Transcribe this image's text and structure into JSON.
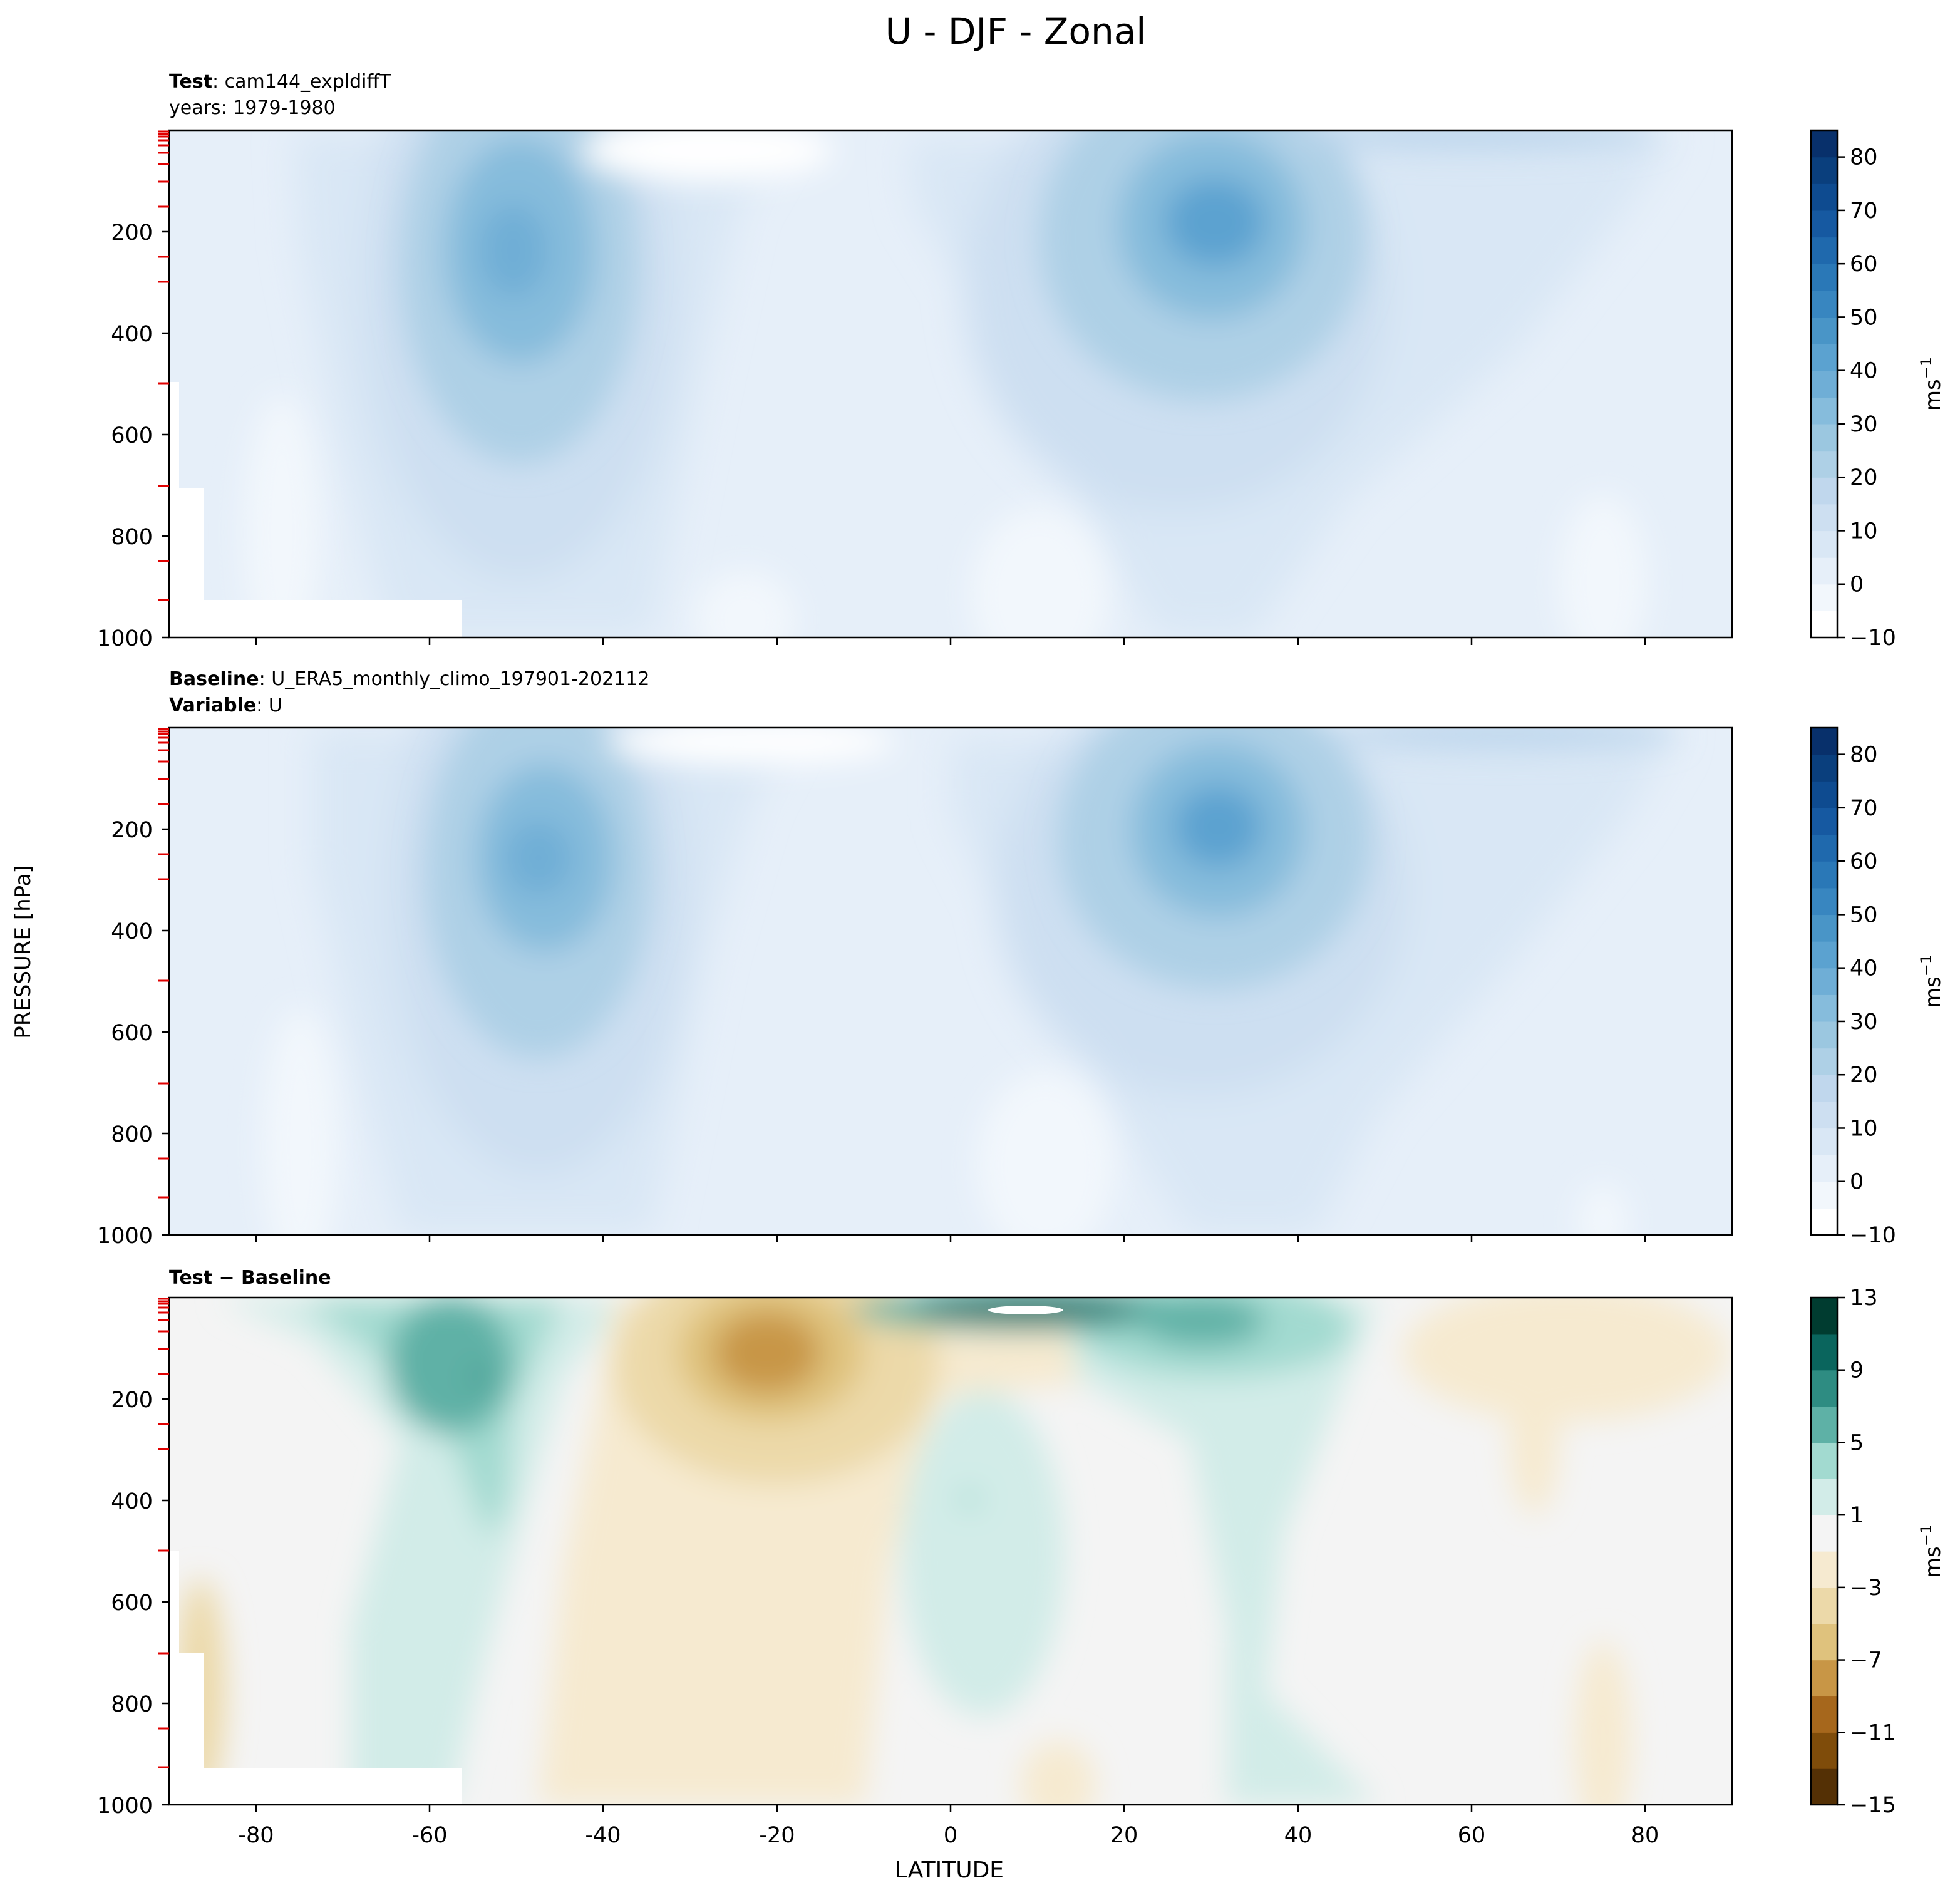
{
  "figure": {
    "title": "U - DJF - Zonal",
    "ylabel": "PRESSURE [hPa]",
    "xlabel": "LATITUDE"
  },
  "chart_data": [
    {
      "type": "heatmap",
      "panel": "test",
      "title_bold": "Test",
      "title_rest": ": cam144_expldiffT",
      "subtitle": "years: 1979-1980",
      "xlim": [
        -90,
        90
      ],
      "ylim": [
        1000,
        0
      ],
      "yticks": [
        200,
        400,
        600,
        800,
        1000
      ],
      "xticks": [
        -80,
        -60,
        -40,
        -20,
        0,
        20,
        40,
        60,
        80
      ],
      "cbar_ticks": [
        "80",
        "70",
        "60",
        "50",
        "40",
        "30",
        "20",
        "10",
        "0",
        "−10"
      ],
      "cbar_levels": [
        -10,
        -5,
        0,
        5,
        10,
        15,
        20,
        25,
        30,
        35,
        40,
        45,
        50,
        55,
        60,
        65,
        70,
        75,
        80,
        85
      ],
      "cbar_label": "ms",
      "cbar_exp": "−1",
      "cmap": [
        "#ffffff",
        "#f2f7fc",
        "#e6eff9",
        "#d9e7f5",
        "#cddff1",
        "#c0d7ed",
        "#aed0e6",
        "#9bc7e0",
        "#86bcdc",
        "#6faed6",
        "#5ba2d0",
        "#4995c7",
        "#3886c0",
        "#2a78b7",
        "#1f69ad",
        "#1659a1",
        "#0e4b90",
        "#0a3f7d",
        "#08306b"
      ],
      "jets": [
        {
          "lat": -51,
          "p": 230,
          "peak": 42
        },
        {
          "lat": 31,
          "p": 205,
          "peak": 48
        }
      ]
    },
    {
      "type": "heatmap",
      "panel": "baseline",
      "title_bold": "Baseline",
      "title_rest": ": U_ERA5_monthly_climo_197901-202112",
      "subtitle_bold": "Variable",
      "subtitle_rest": ": U",
      "xlim": [
        -90,
        90
      ],
      "ylim": [
        1000,
        0
      ],
      "yticks": [
        200,
        400,
        600,
        800,
        1000
      ],
      "xticks": [
        -80,
        -60,
        -40,
        -20,
        0,
        20,
        40,
        60,
        80
      ],
      "cbar_ticks": [
        "80",
        "70",
        "60",
        "50",
        "40",
        "30",
        "20",
        "10",
        "0",
        "−10"
      ],
      "cbar_levels": [
        -10,
        -5,
        0,
        5,
        10,
        15,
        20,
        25,
        30,
        35,
        40,
        45,
        50,
        55,
        60,
        65,
        70,
        75,
        80,
        85
      ],
      "cbar_label": "ms",
      "cbar_exp": "−1",
      "cmap": [
        "#ffffff",
        "#f2f7fc",
        "#e6eff9",
        "#d9e7f5",
        "#cddff1",
        "#c0d7ed",
        "#aed0e6",
        "#9bc7e0",
        "#86bcdc",
        "#6faed6",
        "#5ba2d0",
        "#4995c7",
        "#3886c0",
        "#2a78b7",
        "#1f69ad",
        "#1659a1",
        "#0e4b90",
        "#0a3f7d",
        "#08306b"
      ],
      "jets": [
        {
          "lat": -47,
          "p": 250,
          "peak": 38
        },
        {
          "lat": 31,
          "p": 205,
          "peak": 45
        }
      ]
    },
    {
      "type": "heatmap",
      "panel": "difference",
      "title_bold": "Test − Baseline",
      "xlim": [
        -90,
        90
      ],
      "ylim": [
        1000,
        0
      ],
      "yticks": [
        200,
        400,
        600,
        800,
        1000
      ],
      "xticks": [
        -80,
        -60,
        -40,
        -20,
        0,
        20,
        40,
        60,
        80
      ],
      "cbar_ticks": [
        "13",
        "9",
        "5",
        "1",
        "−3",
        "−7",
        "−11",
        "−15"
      ],
      "cbar_levels": [
        -15,
        -13,
        -11,
        -9,
        -7,
        -5,
        -3,
        -1,
        1,
        3,
        5,
        7,
        9,
        11,
        13
      ],
      "cbar_label": "ms",
      "cbar_exp": "−1",
      "cmap": [
        "#543005",
        "#7f4c0a",
        "#a6671c",
        "#c89646",
        "#dfc27d",
        "#ecd9a9",
        "#f6ead0",
        "#f4f4f4",
        "#d2ece8",
        "#a2dad0",
        "#5eb1a6",
        "#2e8c82",
        "#0a655d",
        "#003c30"
      ],
      "features": [
        {
          "lat": -54,
          "p": 150,
          "value": 9
        },
        {
          "lat": -22,
          "p": 150,
          "value": -7
        },
        {
          "lat": 1,
          "p": 390,
          "value": 3
        },
        {
          "lat": 8,
          "p": 30,
          "value": 13
        },
        {
          "lat": 38,
          "p": 100,
          "value": 7
        }
      ]
    }
  ]
}
